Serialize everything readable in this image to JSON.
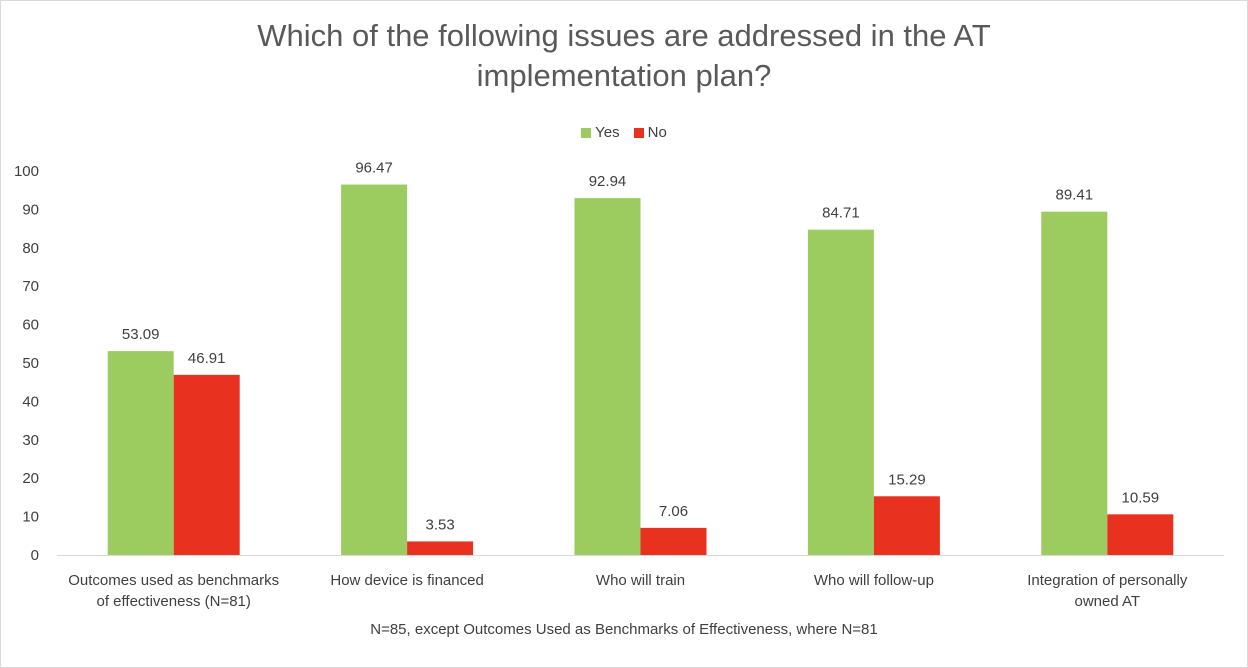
{
  "chart_data": {
    "type": "bar",
    "title": "Which of the following issues are addressed in the AT implementation plan?",
    "title_lines": [
      "Which of the following issues are addressed in the AT",
      "implementation plan?"
    ],
    "categories": [
      [
        "Outcomes used as benchmarks",
        "of effectiveness (N=81)"
      ],
      [
        "How device is financed"
      ],
      [
        "Who will train"
      ],
      [
        "Who will follow-up"
      ],
      [
        "Integration of personally",
        "owned AT"
      ]
    ],
    "series": [
      {
        "name": "Yes",
        "color": "#9ccb5f",
        "values": [
          53.09,
          96.47,
          92.94,
          84.71,
          89.41
        ],
        "labels": [
          "53.09",
          "96.47",
          "92.94",
          "84.71",
          "89.41"
        ]
      },
      {
        "name": "No",
        "color": "#e8321f",
        "values": [
          46.91,
          3.53,
          7.06,
          15.29,
          10.59
        ],
        "labels": [
          "46.91",
          "3.53",
          "7.06",
          "15.29",
          "10.59"
        ]
      }
    ],
    "ylim": [
      0,
      100
    ],
    "yticks": [
      0,
      10,
      20,
      30,
      40,
      50,
      60,
      70,
      80,
      90,
      100
    ],
    "grid": false,
    "legend_position": "top",
    "footnote": "N=85, except Outcomes Used as Benchmarks of Effectiveness, where N=81"
  }
}
